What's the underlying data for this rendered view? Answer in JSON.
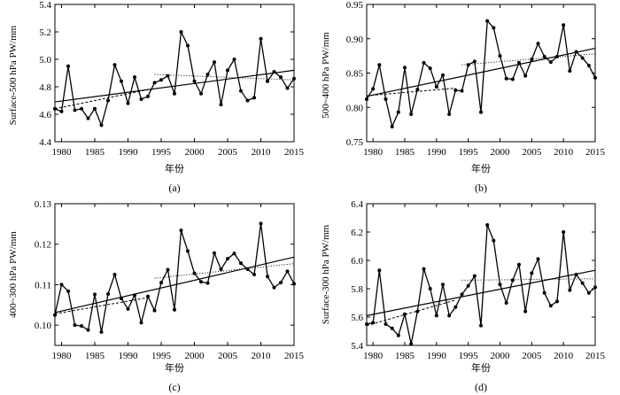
{
  "chart_data": [
    {
      "panel": "(a)",
      "type": "line",
      "xlabel": "年份",
      "ylabel": "Surface-500 hPa PW/mm",
      "xlim": [
        1979,
        2015
      ],
      "ylim": [
        4.4,
        5.4
      ],
      "xticks": [
        "1980",
        "1985",
        "1990",
        "1995",
        "2000",
        "2005",
        "2010",
        "2015"
      ],
      "yticks": [
        "4.4",
        "4.6",
        "4.8",
        "5.0",
        "5.2",
        "5.4"
      ],
      "x": [
        1979,
        1980,
        1981,
        1982,
        1983,
        1984,
        1985,
        1986,
        1987,
        1988,
        1989,
        1990,
        1991,
        1992,
        1993,
        1994,
        1995,
        1996,
        1997,
        1998,
        1999,
        2000,
        2001,
        2002,
        2003,
        2004,
        2005,
        2006,
        2007,
        2008,
        2009,
        2010,
        2011,
        2012,
        2013,
        2014,
        2015
      ],
      "values": [
        4.64,
        4.62,
        4.95,
        4.63,
        4.64,
        4.57,
        4.64,
        4.52,
        4.7,
        4.96,
        4.84,
        4.68,
        4.87,
        4.71,
        4.73,
        4.83,
        4.85,
        4.88,
        4.75,
        5.2,
        5.1,
        4.84,
        4.75,
        4.89,
        4.98,
        4.67,
        4.92,
        5.0,
        4.77,
        4.7,
        4.72,
        5.15,
        4.84,
        4.91,
        4.87,
        4.79,
        4.86
      ],
      "trend_full": {
        "x": [
          1979,
          2015
        ],
        "y": [
          4.69,
          4.92
        ]
      },
      "trend_early": {
        "x": [
          1979,
          1993
        ],
        "y": [
          4.64,
          4.78
        ]
      },
      "trend_late": {
        "x": [
          1994,
          2015
        ],
        "y": [
          4.89,
          4.85
        ]
      }
    },
    {
      "panel": "(b)",
      "type": "line",
      "xlabel": "年份",
      "ylabel": "500~400 hPa PW/mm",
      "xlim": [
        1979,
        2015
      ],
      "ylim": [
        0.75,
        0.95
      ],
      "xticks": [
        "1980",
        "1985",
        "1990",
        "1995",
        "2000",
        "2005",
        "2010",
        "2015"
      ],
      "yticks": [
        "0.75",
        "0.80",
        "0.85",
        "0.90",
        "0.95"
      ],
      "x": [
        1979,
        1980,
        1981,
        1982,
        1983,
        1984,
        1985,
        1986,
        1987,
        1988,
        1989,
        1990,
        1991,
        1992,
        1993,
        1994,
        1995,
        1996,
        1997,
        1998,
        1999,
        2000,
        2001,
        2002,
        2003,
        2004,
        2005,
        2006,
        2007,
        2008,
        2009,
        2010,
        2011,
        2012,
        2013,
        2014,
        2015
      ],
      "values": [
        0.812,
        0.827,
        0.862,
        0.812,
        0.772,
        0.793,
        0.858,
        0.79,
        0.826,
        0.865,
        0.857,
        0.83,
        0.847,
        0.79,
        0.825,
        0.824,
        0.862,
        0.867,
        0.793,
        0.926,
        0.916,
        0.875,
        0.842,
        0.841,
        0.865,
        0.846,
        0.87,
        0.893,
        0.874,
        0.866,
        0.874,
        0.92,
        0.853,
        0.881,
        0.872,
        0.861,
        0.843
      ],
      "trend_full": {
        "x": [
          1979,
          2015
        ],
        "y": [
          0.816,
          0.886
        ]
      },
      "trend_early": {
        "x": [
          1979,
          1993
        ],
        "y": [
          0.817,
          0.828
        ]
      },
      "trend_late": {
        "x": [
          1994,
          2015
        ],
        "y": [
          0.862,
          0.878
        ]
      }
    },
    {
      "panel": "(c)",
      "type": "line",
      "xlabel": "年份",
      "ylabel": "400~300 hPa PW/mm",
      "xlim": [
        1979,
        2015
      ],
      "ylim": [
        0.095,
        0.13
      ],
      "xticks": [
        "1980",
        "1985",
        "1990",
        "1995",
        "2000",
        "2005",
        "2010",
        "2015"
      ],
      "yticks": [
        "0.10",
        "0.11",
        "0.12",
        "0.13"
      ],
      "x": [
        1979,
        1980,
        1981,
        1982,
        1983,
        1984,
        1985,
        1986,
        1987,
        1988,
        1989,
        1990,
        1991,
        1992,
        1993,
        1994,
        1995,
        1996,
        1997,
        1998,
        1999,
        2000,
        2001,
        2002,
        2003,
        2004,
        2005,
        2006,
        2007,
        2008,
        2009,
        2010,
        2011,
        2012,
        2013,
        2014,
        2015
      ],
      "values": [
        0.1025,
        0.11,
        0.1084,
        0.1,
        0.0998,
        0.0988,
        0.1076,
        0.0983,
        0.1077,
        0.1125,
        0.1066,
        0.104,
        0.1074,
        0.1006,
        0.1071,
        0.1036,
        0.1105,
        0.1137,
        0.1038,
        0.1234,
        0.1183,
        0.1128,
        0.1107,
        0.1104,
        0.1178,
        0.1138,
        0.1164,
        0.1177,
        0.1153,
        0.1138,
        0.1125,
        0.1251,
        0.112,
        0.1093,
        0.1105,
        0.1133,
        0.1102
      ],
      "trend_full": {
        "x": [
          1979,
          2015
        ],
        "y": [
          0.1031,
          0.1168
        ]
      },
      "trend_early": {
        "x": [
          1979,
          1993
        ],
        "y": [
          0.1028,
          0.1068
        ]
      },
      "trend_late": {
        "x": [
          1994,
          2015
        ],
        "y": [
          0.1116,
          0.1152
        ]
      }
    },
    {
      "panel": "(d)",
      "type": "line",
      "xlabel": "年份",
      "ylabel": "Surface-300 hPa PW/mm",
      "xlim": [
        1979,
        2015
      ],
      "ylim": [
        5.4,
        6.4
      ],
      "xticks": [
        "1980",
        "1985",
        "1990",
        "1995",
        "2000",
        "2005",
        "2010",
        "2015"
      ],
      "yticks": [
        "5.4",
        "5.6",
        "5.8",
        "6.0",
        "6.2",
        "6.4"
      ],
      "x": [
        1979,
        1980,
        1981,
        1982,
        1983,
        1984,
        1985,
        1986,
        1987,
        1988,
        1989,
        1990,
        1991,
        1992,
        1993,
        1994,
        1995,
        1996,
        1997,
        1998,
        1999,
        2000,
        2001,
        2002,
        2003,
        2004,
        2005,
        2006,
        2007,
        2008,
        2009,
        2010,
        2011,
        2012,
        2013,
        2014,
        2015
      ],
      "values": [
        5.55,
        5.56,
        5.93,
        5.55,
        5.52,
        5.47,
        5.62,
        5.41,
        5.64,
        5.94,
        5.8,
        5.61,
        5.83,
        5.61,
        5.67,
        5.76,
        5.82,
        5.89,
        5.54,
        6.25,
        6.14,
        5.83,
        5.7,
        5.86,
        5.97,
        5.64,
        5.91,
        6.01,
        5.77,
        5.68,
        5.71,
        6.2,
        5.79,
        5.9,
        5.84,
        5.77,
        5.81
      ],
      "trend_full": {
        "x": [
          1979,
          2015
        ],
        "y": [
          5.61,
          5.93
        ]
      },
      "trend_early": {
        "x": [
          1979,
          1993
        ],
        "y": [
          5.54,
          5.72
        ]
      },
      "trend_late": {
        "x": [
          1994,
          2015
        ],
        "y": [
          5.86,
          5.87
        ]
      }
    }
  ]
}
